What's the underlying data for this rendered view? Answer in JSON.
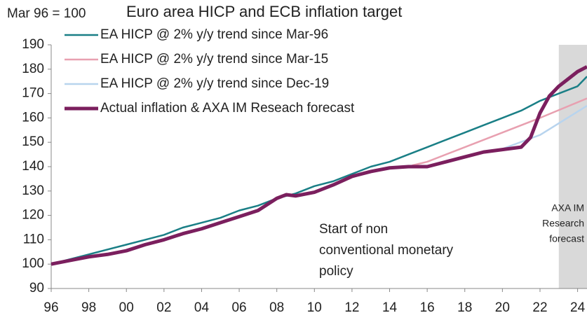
{
  "chart_data": {
    "type": "line",
    "title": "Euro area HICP and ECB inflation target",
    "y_label": "Mar 96 = 100",
    "xlim": [
      1996,
      2024.5
    ],
    "ylim": [
      90,
      190
    ],
    "yticks": [
      90,
      100,
      110,
      120,
      130,
      140,
      150,
      160,
      170,
      180,
      190
    ],
    "xticks": [
      {
        "value": 1996,
        "label": "96"
      },
      {
        "value": 1998,
        "label": "98"
      },
      {
        "value": 2000,
        "label": "00"
      },
      {
        "value": 2002,
        "label": "02"
      },
      {
        "value": 2004,
        "label": "04"
      },
      {
        "value": 2006,
        "label": "06"
      },
      {
        "value": 2008,
        "label": "08"
      },
      {
        "value": 2010,
        "label": "10"
      },
      {
        "value": 2012,
        "label": "12"
      },
      {
        "value": 2014,
        "label": "14"
      },
      {
        "value": 2016,
        "label": "16"
      },
      {
        "value": 2018,
        "label": "18"
      },
      {
        "value": 2020,
        "label": "20"
      },
      {
        "value": 2022,
        "label": "22"
      },
      {
        "value": 2024,
        "label": "24"
      }
    ],
    "shade_from": 2023,
    "shade_color": "#d9d9d9",
    "annotations": [
      {
        "lines": [
          "AXA IM",
          "Research",
          "forecast"
        ]
      },
      {
        "lines": [
          "Start of non",
          "conventional monetary",
          "policy"
        ]
      }
    ],
    "series": [
      {
        "name": "EA HICP @ 2% y/y trend since Mar-96",
        "color": "#1a7f86",
        "width": 2.5,
        "x": [
          1996,
          1997,
          1998,
          1999,
          2000,
          2001,
          2002,
          2003,
          2004,
          2005,
          2006,
          2007,
          2008,
          2009,
          2010,
          2011,
          2012,
          2013,
          2014,
          2015,
          2016,
          2017,
          2018,
          2019,
          2020,
          2021,
          2022,
          2023,
          2024,
          2024.5
        ],
        "values": [
          100,
          102,
          104,
          106,
          108,
          110,
          112,
          115,
          117,
          119,
          122,
          124,
          127,
          129,
          132,
          134,
          137,
          140,
          142,
          145,
          148,
          151,
          154,
          157,
          160,
          163,
          167,
          170,
          173,
          177
        ]
      },
      {
        "name": "EA HICP @ 2% y/y trend since Mar-15",
        "color": "#e8a0b0",
        "width": 2.5,
        "x": [
          2015.2,
          2016,
          2018,
          2020,
          2022,
          2024.5
        ],
        "values": [
          140.5,
          142,
          148,
          154,
          160,
          168
        ]
      },
      {
        "name": "EA HICP @ 2% y/y trend since Dec-19",
        "color": "#b8d4ee",
        "width": 2.5,
        "x": [
          2019.9,
          2022,
          2024.5
        ],
        "values": [
          147,
          153,
          165
        ]
      },
      {
        "name": "Actual inflation & AXA IM Reseach forecast",
        "color": "#7b1f5e",
        "width": 5,
        "x": [
          1996,
          1997,
          1998,
          1999,
          2000,
          2001,
          2002,
          2003,
          2004,
          2005,
          2006,
          2007,
          2008,
          2008.5,
          2009,
          2010,
          2011,
          2012,
          2013,
          2014,
          2015,
          2016,
          2017,
          2018,
          2019,
          2020,
          2021,
          2021.5,
          2022,
          2022.5,
          2023,
          2023.5,
          2024,
          2024.5
        ],
        "values": [
          100,
          101.5,
          103,
          104,
          105.5,
          108,
          110,
          112.5,
          114.5,
          117,
          119.5,
          122,
          127,
          128.5,
          128,
          129.5,
          132.5,
          136,
          138,
          139.5,
          140,
          140,
          142,
          144,
          146,
          147,
          148,
          152,
          162,
          169,
          173,
          176,
          179,
          181
        ]
      }
    ]
  }
}
